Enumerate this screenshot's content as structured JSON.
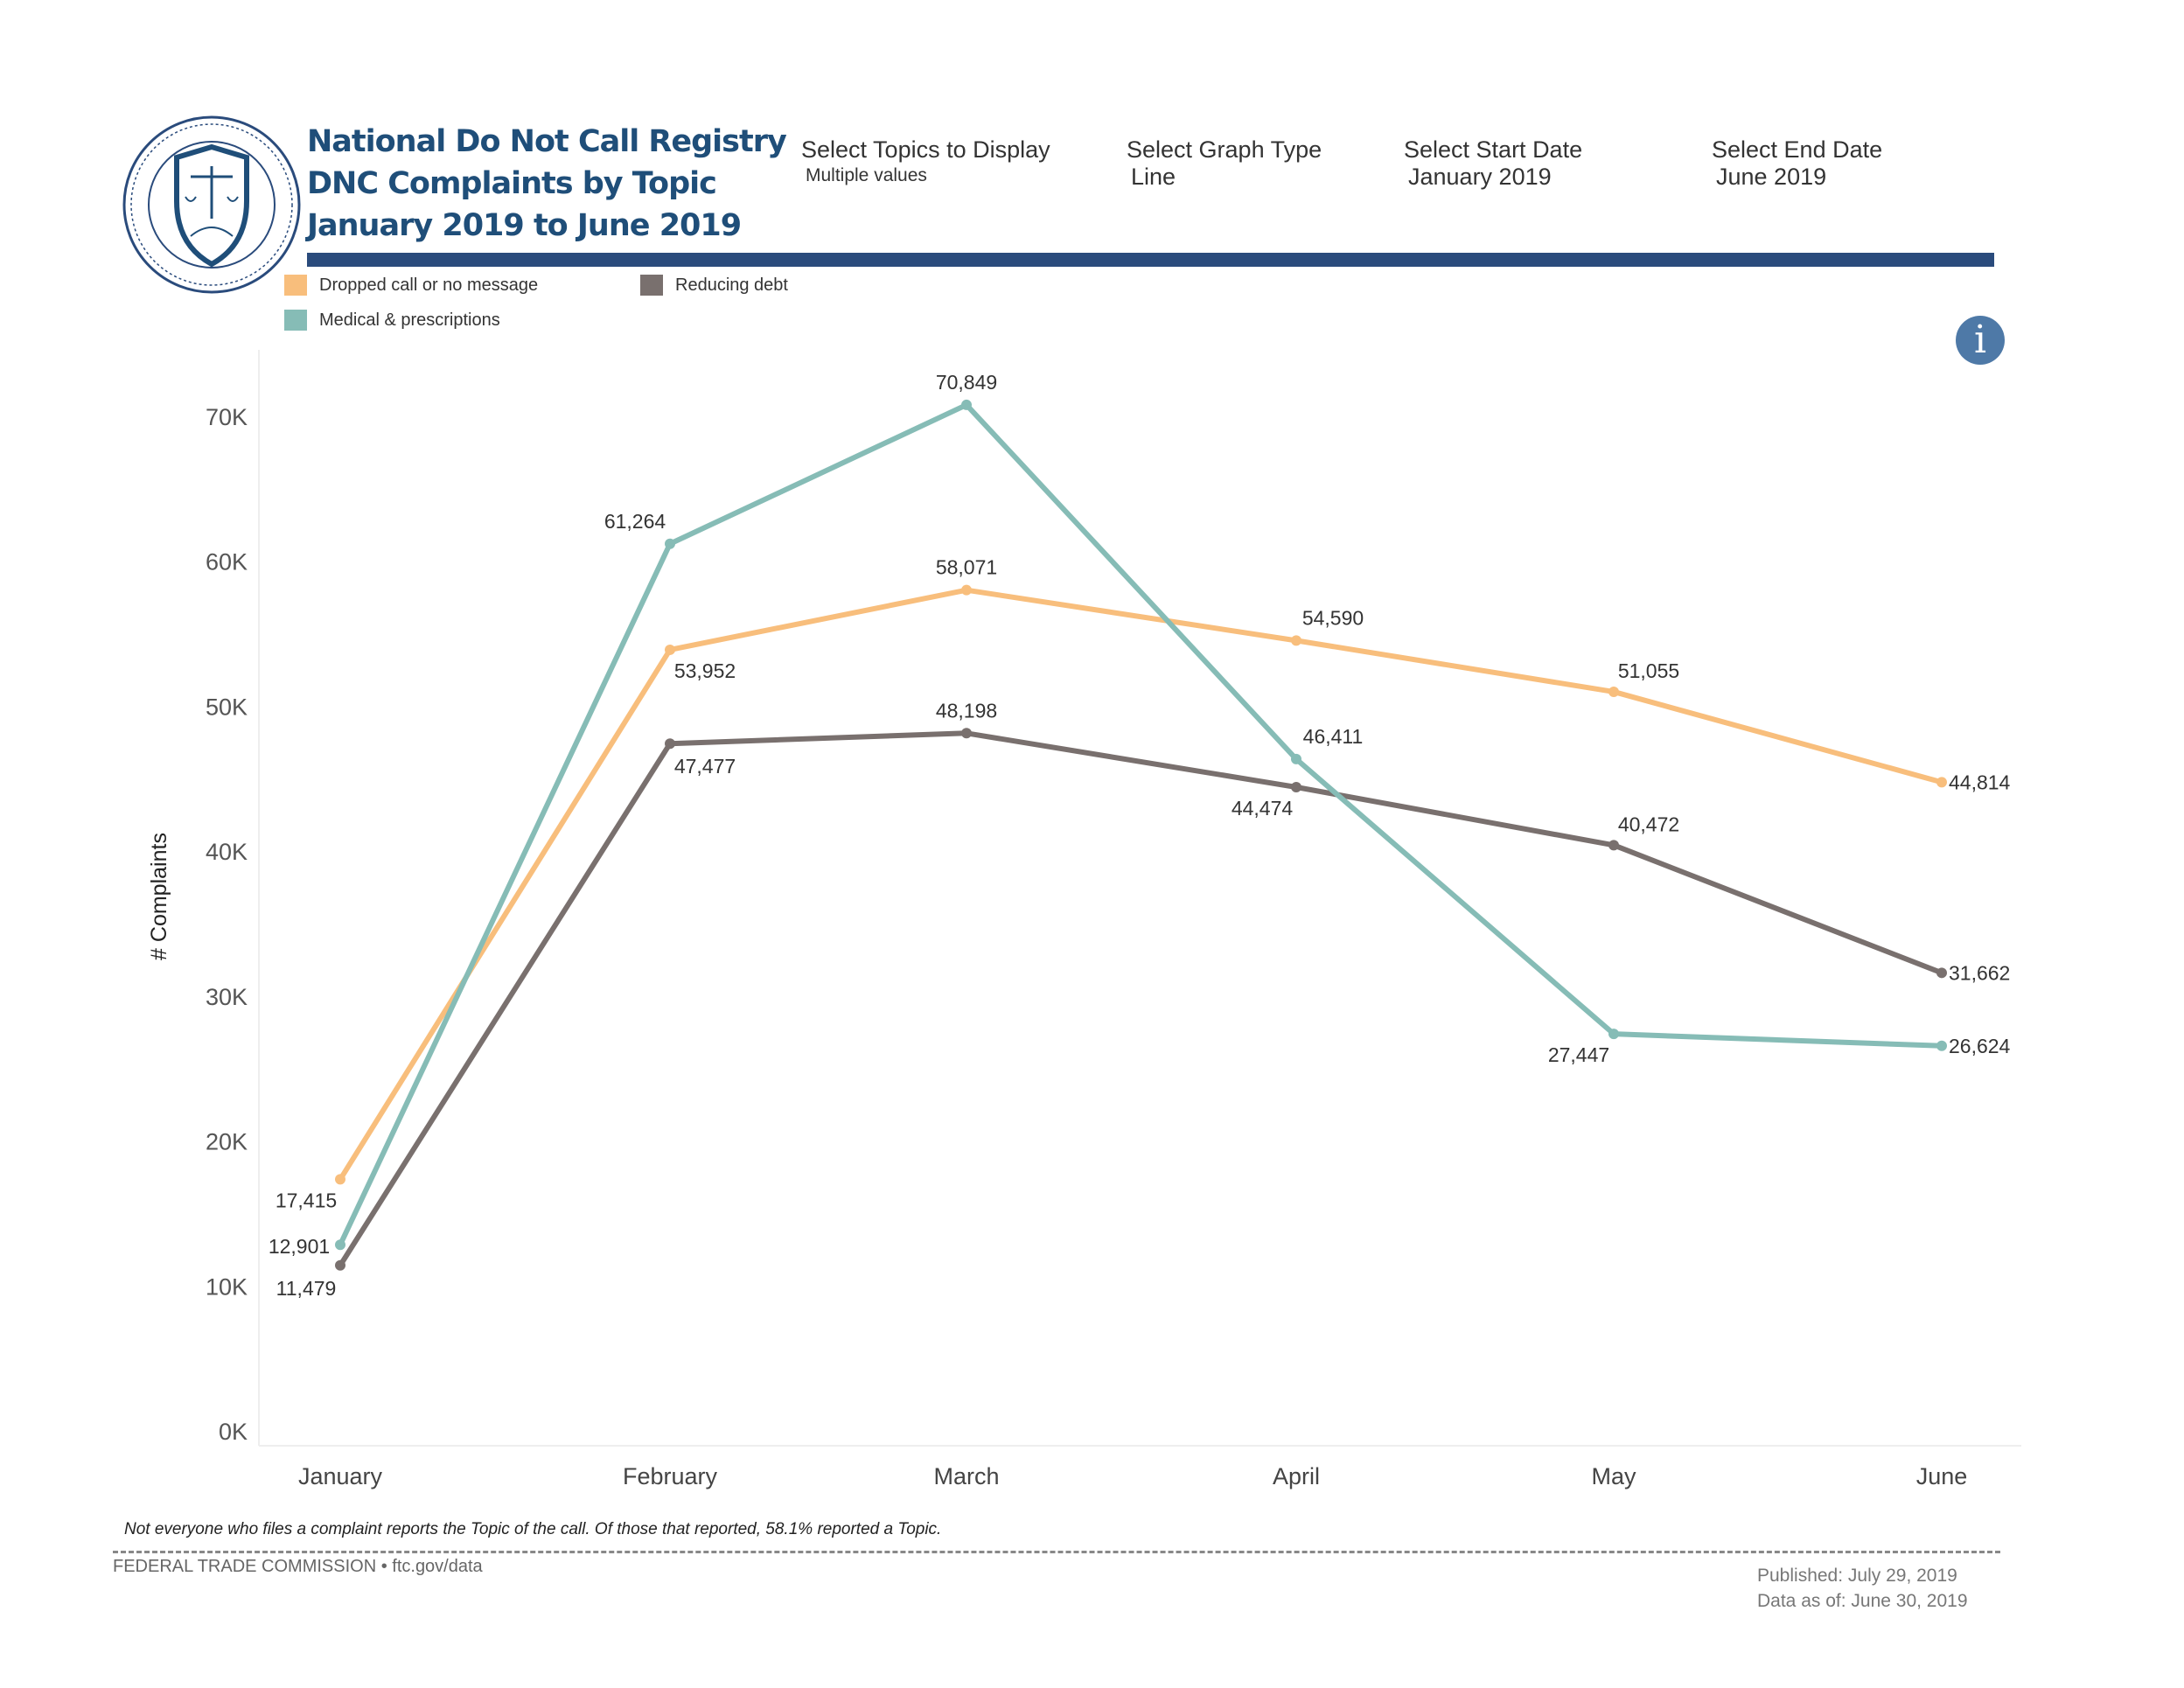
{
  "header": {
    "title_lines": [
      "National Do Not Call Registry",
      "DNC Complaints by Topic",
      "January 2019 to June 2019"
    ],
    "filters": [
      {
        "label": "Select Topics to Display",
        "value": "Multiple values"
      },
      {
        "label": "Select Graph Type",
        "value": "Line"
      },
      {
        "label": "Select Start Date",
        "value": "January 2019"
      },
      {
        "label": "Select End Date",
        "value": "June 2019"
      }
    ],
    "info_icon": "info-icon",
    "seal": "Federal Trade Commission seal"
  },
  "colors": {
    "accent_bar": "#2A4B7C",
    "title": "#1F4E79",
    "info": "#4E79A7"
  },
  "chart_data": {
    "type": "line",
    "categories": [
      "January",
      "February",
      "March",
      "April",
      "May",
      "June"
    ],
    "ylabel": "# Complaints",
    "xlabel": "",
    "ylim": [
      0,
      70000
    ],
    "yticks": [
      0,
      10000,
      20000,
      30000,
      40000,
      50000,
      60000,
      70000
    ],
    "ytick_labels": [
      "0K",
      "10K",
      "20K",
      "30K",
      "40K",
      "50K",
      "60K",
      "70K"
    ],
    "grid": false,
    "legend_placement": "top-left",
    "series": [
      {
        "name": "Dropped call or no message",
        "color": "#F8BE7C",
        "values": [
          17415,
          53952,
          58071,
          54590,
          51055,
          44814
        ],
        "labels": [
          "17,415",
          "53,952",
          "58,071",
          "54,590",
          "51,055",
          "44,814"
        ]
      },
      {
        "name": "Reducing debt",
        "color": "#79706E",
        "values": [
          11479,
          47477,
          48198,
          44474,
          40472,
          31662
        ],
        "labels": [
          "11,479",
          "47,477",
          "48,198",
          "44,474",
          "40,472",
          "31,662"
        ]
      },
      {
        "name": "Medical & prescriptions",
        "color": "#86BCB6",
        "values": [
          12901,
          61264,
          70849,
          46411,
          27447,
          26624
        ],
        "labels": [
          "12,901",
          "61,264",
          "70,849",
          "46,411",
          "27,447",
          "26,624"
        ]
      }
    ]
  },
  "footer": {
    "note": "Not everyone who files a complaint reports the Topic of the call.  Of those that reported, 58.1% reported a Topic.",
    "agency": "FEDERAL TRADE COMMISSION • ftc.gov/data",
    "published": "Published: July 29, 2019",
    "data_as_of": "Data as of: June 30, 2019"
  }
}
